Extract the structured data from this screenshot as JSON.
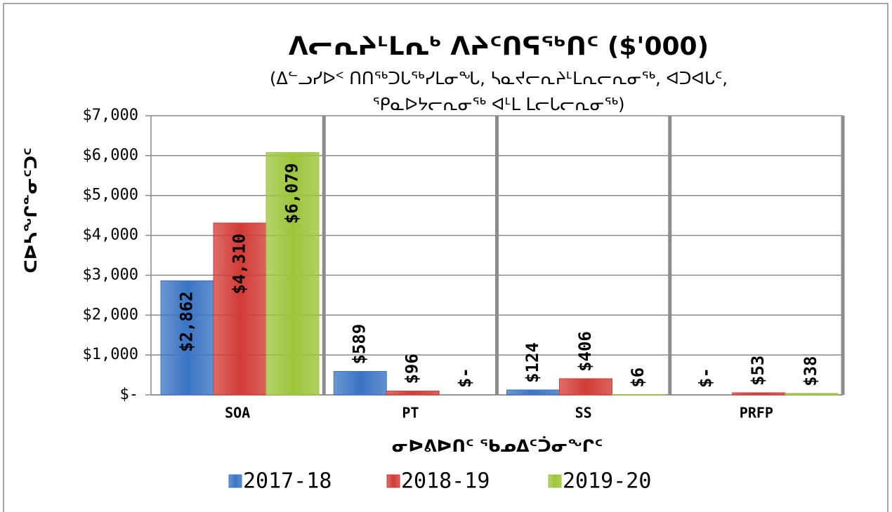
{
  "chart_data": {
    "type": "bar",
    "title": "ᐱᓕᕆᔨᒻᒪᕆᒃ ᐱᔨᑦᑎᕋᖅᑎᑦ ($'000)",
    "subtitle": [
      "(ᐃᓪᓗᓯᐅᑉ ᑎᑎᖅᑐᒐᖅᓯᒪᓂᖓ, ᓴᓇᔪᓕᕆᔨᒻᒪᕆᓕᕆᓂᖅ, ᐊᑐᐊᒐᑦ,",
      "ᕿᓇᐅᔭᓕᕆᓂᖅ ᐊᒻᒪ ᒪᓕᒐᓕᕆᓂᖅ)"
    ],
    "y_label": "ᑕᐅᓴᖏᓐᓂᑦᑐᑦ",
    "x_label": "ᓂᐅᕕᐅᑎᑦ ᖃᓄᐃᑦᑑᓂᖏᑦ",
    "categories": [
      "SOA",
      "PT",
      "SS",
      "PRFP"
    ],
    "series": [
      {
        "name": "2017-18",
        "color": "#3a74c4",
        "values": [
          2862,
          589,
          124,
          0
        ],
        "value_labels": [
          "$2,862",
          "$589",
          "$124",
          "$-"
        ]
      },
      {
        "name": "2018-19",
        "color": "#d23b36",
        "values": [
          4310,
          96,
          406,
          53
        ],
        "value_labels": [
          "$4,310",
          "$96",
          "$406",
          "$53"
        ]
      },
      {
        "name": "2019-20",
        "color": "#9cc53b",
        "values": [
          6079,
          0,
          6,
          38
        ],
        "value_labels": [
          "$6,079",
          "$-",
          "$6",
          "$38"
        ]
      }
    ],
    "ylim": [
      0,
      7000
    ],
    "yticks": [
      {
        "value": 0,
        "label": "$-"
      },
      {
        "value": 1000,
        "label": "$1,000"
      },
      {
        "value": 2000,
        "label": "$2,000"
      },
      {
        "value": 3000,
        "label": "$3,000"
      },
      {
        "value": 4000,
        "label": "$4,000"
      },
      {
        "value": 5000,
        "label": "$5,000"
      },
      {
        "value": 6000,
        "label": "$6,000"
      },
      {
        "value": 7000,
        "label": "$7,000"
      }
    ],
    "grid": true,
    "legend": "bottom"
  }
}
